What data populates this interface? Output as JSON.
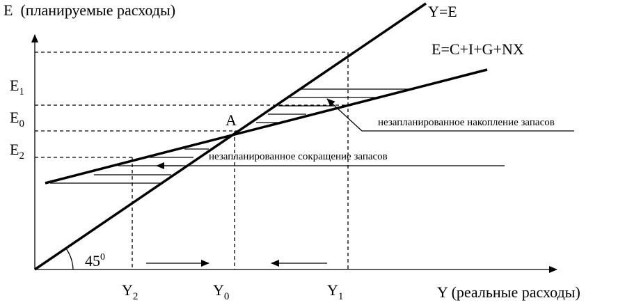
{
  "axes": {
    "y_label": "E  (планируемые расходы)",
    "x_label": "Y (реальные расходы)"
  },
  "lines": {
    "identity": "Y=E",
    "expenditure": "E=C+I+G+NX"
  },
  "point": "A",
  "angle": {
    "base": "45",
    "sup": "0"
  },
  "y_marks": [
    {
      "base": "E",
      "sub": "1"
    },
    {
      "base": "E",
      "sub": "0"
    },
    {
      "base": "E",
      "sub": "2"
    }
  ],
  "x_marks": [
    {
      "base": "Y",
      "sub": "2"
    },
    {
      "base": "Y",
      "sub": "0"
    },
    {
      "base": "Y",
      "sub": "1"
    }
  ],
  "annotations": {
    "accumulation": "незапланированное накопление запасов",
    "reduction": "незапланированное сокращение запасов"
  }
}
